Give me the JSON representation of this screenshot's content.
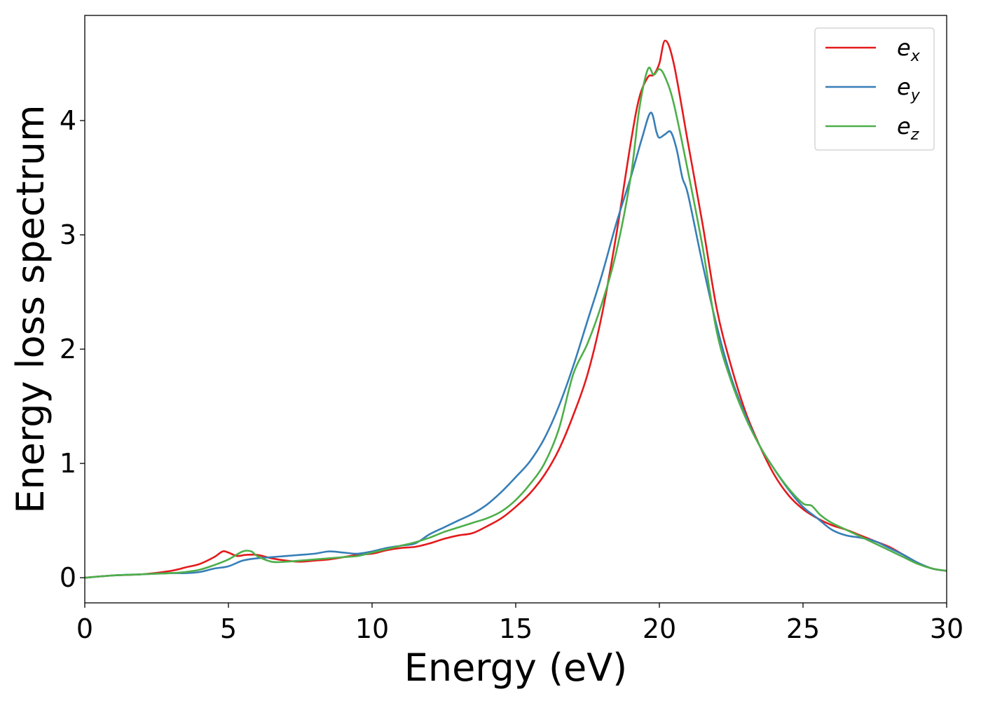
{
  "chart_data": {
    "type": "line",
    "title": "",
    "xlabel": "Energy (eV)",
    "ylabel": "Energy loss spectrum",
    "xlim": [
      0,
      30
    ],
    "ylim": [
      -0.22,
      4.92
    ],
    "xticks": [
      0,
      5,
      10,
      15,
      20,
      25,
      30
    ],
    "yticks": [
      0,
      1,
      2,
      3,
      4
    ],
    "grid": false,
    "legend_position": "top-right",
    "series": [
      {
        "name": "e_x",
        "legend_base": "e",
        "legend_sub": "x",
        "color": "#e41a1c",
        "x": [
          0,
          1,
          2,
          3,
          3.5,
          4,
          4.5,
          4.8,
          5,
          5.3,
          5.6,
          6,
          6.5,
          7,
          7.5,
          8,
          8.5,
          9,
          9.5,
          10,
          10.5,
          11,
          11.5,
          12,
          12.5,
          13,
          13.5,
          14,
          14.5,
          15,
          15.5,
          16,
          16.5,
          17,
          17.5,
          18,
          18.5,
          19,
          19.3,
          19.6,
          19.8,
          20,
          20.2,
          20.5,
          21,
          21.5,
          22,
          22.5,
          23,
          23.5,
          24,
          24.5,
          25,
          25.5,
          26,
          26.5,
          27,
          27.5,
          28,
          28.5,
          29,
          29.5,
          30
        ],
        "y": [
          0,
          0.02,
          0.03,
          0.06,
          0.09,
          0.12,
          0.18,
          0.23,
          0.22,
          0.19,
          0.2,
          0.2,
          0.17,
          0.15,
          0.14,
          0.15,
          0.16,
          0.18,
          0.2,
          0.21,
          0.24,
          0.26,
          0.27,
          0.3,
          0.34,
          0.37,
          0.39,
          0.45,
          0.52,
          0.62,
          0.74,
          0.9,
          1.12,
          1.42,
          1.78,
          2.3,
          3.0,
          3.8,
          4.2,
          4.38,
          4.4,
          4.5,
          4.7,
          4.5,
          3.8,
          3.1,
          2.35,
          1.85,
          1.45,
          1.15,
          0.9,
          0.72,
          0.6,
          0.52,
          0.46,
          0.42,
          0.37,
          0.32,
          0.27,
          0.2,
          0.13,
          0.08,
          0.06
        ]
      },
      {
        "name": "e_y",
        "legend_base": "e",
        "legend_sub": "y",
        "color": "#377eb8",
        "x": [
          0,
          1,
          2,
          3,
          3.5,
          4,
          4.5,
          5,
          5.5,
          6,
          6.5,
          7,
          7.5,
          8,
          8.5,
          9,
          9.5,
          10,
          10.5,
          11,
          11.5,
          12,
          12.5,
          13,
          13.5,
          14,
          14.5,
          15,
          15.5,
          16,
          16.5,
          17,
          17.5,
          18,
          18.5,
          19,
          19.4,
          19.7,
          19.9,
          20,
          20.2,
          20.4,
          20.6,
          20.8,
          21,
          21.5,
          22,
          22.5,
          23,
          23.5,
          24,
          24.5,
          25,
          25.5,
          26,
          26.5,
          27,
          27.5,
          28,
          28.5,
          29,
          29.5,
          30
        ],
        "y": [
          0,
          0.02,
          0.03,
          0.04,
          0.04,
          0.05,
          0.08,
          0.1,
          0.15,
          0.17,
          0.18,
          0.19,
          0.2,
          0.21,
          0.23,
          0.22,
          0.21,
          0.23,
          0.26,
          0.28,
          0.3,
          0.38,
          0.44,
          0.5,
          0.56,
          0.64,
          0.75,
          0.88,
          1.02,
          1.22,
          1.5,
          1.85,
          2.25,
          2.65,
          3.1,
          3.5,
          3.85,
          4.07,
          3.9,
          3.85,
          3.88,
          3.9,
          3.75,
          3.5,
          3.35,
          2.75,
          2.2,
          1.75,
          1.42,
          1.15,
          0.95,
          0.77,
          0.62,
          0.52,
          0.42,
          0.37,
          0.35,
          0.32,
          0.26,
          0.2,
          0.13,
          0.08,
          0.06
        ]
      },
      {
        "name": "e_z",
        "legend_base": "e",
        "legend_sub": "z",
        "color": "#4daf4a",
        "x": [
          0,
          1,
          2,
          3,
          3.5,
          4,
          4.5,
          5,
          5.5,
          5.8,
          6,
          6.5,
          7,
          7.5,
          8,
          8.5,
          9,
          9.5,
          10,
          10.5,
          11,
          11.5,
          12,
          12.5,
          13,
          13.5,
          14,
          14.5,
          15,
          15.5,
          16,
          16.5,
          17,
          17.5,
          18,
          18.5,
          19,
          19.3,
          19.6,
          19.8,
          20,
          20.2,
          20.5,
          21,
          21.5,
          22,
          22.5,
          23,
          23.5,
          24,
          24.5,
          25,
          25.3,
          25.6,
          26,
          26.5,
          27,
          27.5,
          28,
          28.5,
          29,
          29.5,
          30
        ],
        "y": [
          0,
          0.02,
          0.03,
          0.04,
          0.05,
          0.07,
          0.11,
          0.16,
          0.23,
          0.23,
          0.19,
          0.14,
          0.14,
          0.15,
          0.16,
          0.17,
          0.18,
          0.19,
          0.22,
          0.25,
          0.28,
          0.31,
          0.35,
          0.4,
          0.44,
          0.48,
          0.52,
          0.58,
          0.68,
          0.82,
          1.0,
          1.3,
          1.78,
          2.05,
          2.4,
          2.85,
          3.5,
          4.1,
          4.45,
          4.4,
          4.45,
          4.38,
          4.15,
          3.55,
          2.9,
          2.15,
          1.72,
          1.4,
          1.15,
          0.95,
          0.78,
          0.65,
          0.63,
          0.55,
          0.48,
          0.42,
          0.36,
          0.3,
          0.24,
          0.18,
          0.12,
          0.08,
          0.06
        ]
      }
    ]
  }
}
